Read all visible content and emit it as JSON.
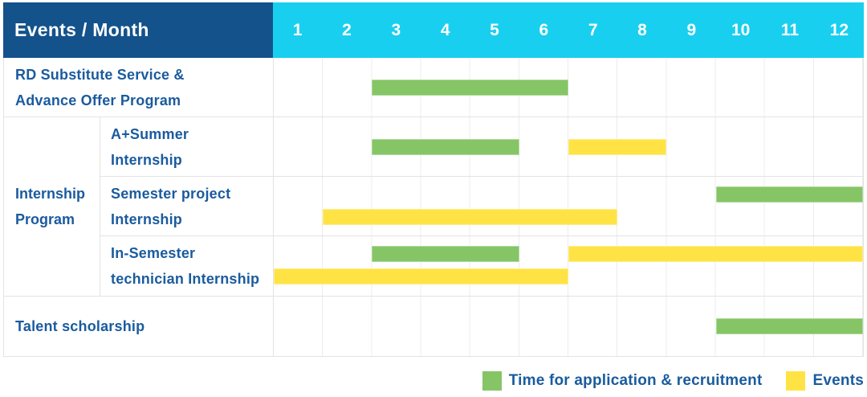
{
  "header": {
    "label": "Events / Month",
    "months": [
      "1",
      "2",
      "3",
      "4",
      "5",
      "6",
      "7",
      "8",
      "9",
      "10",
      "11",
      "12"
    ]
  },
  "colors": {
    "header_bg": "#14528B",
    "months_bg": "#19CFEF",
    "header_text": "#FFFFFF",
    "label_text": "#1A5B9E",
    "green": "#85C566",
    "yellow": "#FFE345",
    "row_border": "#E3E3E3",
    "grid_line": "#ECECEC"
  },
  "legend": {
    "items": [
      {
        "label": "Time for application & recruitment",
        "color": "green"
      },
      {
        "label": "Events",
        "color": "yellow"
      }
    ]
  },
  "chart_data": {
    "type": "gantt",
    "x_axis": {
      "label": "Month",
      "ticks": [
        1,
        2,
        3,
        4,
        5,
        6,
        7,
        8,
        9,
        10,
        11,
        12
      ],
      "range": [
        1,
        12
      ]
    },
    "series_meaning": {
      "green": "Time for application & recruitment",
      "yellow": "Events"
    },
    "group": {
      "label_lines": [
        "Internship",
        "Program"
      ],
      "covers_rows": [
        1,
        2,
        3
      ]
    },
    "rows": [
      {
        "label_lines": [
          "RD Substitute Service &",
          "Advance Offer Program"
        ],
        "bars": [
          {
            "color": "green",
            "series": "application-recruitment",
            "start_month": 3,
            "end_month": 6,
            "lane": "center"
          }
        ]
      },
      {
        "label_lines": [
          "A+Summer",
          "Internship"
        ],
        "group": "Internship Program",
        "bars": [
          {
            "color": "green",
            "series": "application-recruitment",
            "start_month": 3,
            "end_month": 5,
            "lane": "center"
          },
          {
            "color": "yellow",
            "series": "events",
            "start_month": 7,
            "end_month": 8,
            "lane": "center"
          }
        ]
      },
      {
        "label_lines": [
          "Semester project",
          "Internship"
        ],
        "group": "Internship Program",
        "bars": [
          {
            "color": "green",
            "series": "application-recruitment",
            "start_month": 10,
            "end_month": 12,
            "lane": "top"
          },
          {
            "color": "yellow",
            "series": "events",
            "start_month": 2,
            "end_month": 7,
            "lane": "bottom"
          }
        ]
      },
      {
        "label_lines": [
          "In-Semester",
          "technician Internship"
        ],
        "group": "Internship Program",
        "bars": [
          {
            "color": "green",
            "series": "application-recruitment",
            "start_month": 3,
            "end_month": 5,
            "lane": "top"
          },
          {
            "color": "yellow",
            "series": "events",
            "start_month": 7,
            "end_month": 12,
            "lane": "top"
          },
          {
            "color": "yellow",
            "series": "events",
            "start_month": 1,
            "end_month": 6,
            "lane": "bottom"
          }
        ]
      },
      {
        "label_lines": [
          "Talent scholarship"
        ],
        "bars": [
          {
            "color": "green",
            "series": "application-recruitment",
            "start_month": 10,
            "end_month": 12,
            "lane": "center"
          }
        ]
      }
    ]
  }
}
